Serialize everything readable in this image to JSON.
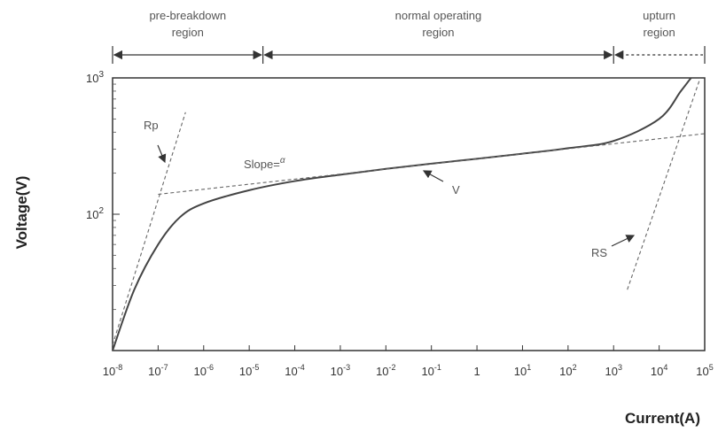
{
  "chart_data": {
    "type": "line",
    "title": "",
    "xlabel": "Current(A)",
    "ylabel": "Voltage(V)",
    "x_scale": "log",
    "y_scale": "log",
    "xlim": [
      1e-08,
      100000.0
    ],
    "ylim": [
      10,
      1000
    ],
    "x_ticks": [
      {
        "value": 1e-08,
        "base": "10",
        "exp": "-8"
      },
      {
        "value": 1e-07,
        "base": "10",
        "exp": "-7"
      },
      {
        "value": 1e-06,
        "base": "10",
        "exp": "-6"
      },
      {
        "value": 1e-05,
        "base": "10",
        "exp": "-5"
      },
      {
        "value": 0.0001,
        "base": "10",
        "exp": "-4"
      },
      {
        "value": 0.001,
        "base": "10",
        "exp": "-3"
      },
      {
        "value": 0.01,
        "base": "10",
        "exp": "-2"
      },
      {
        "value": 0.1,
        "base": "10",
        "exp": "-1"
      },
      {
        "value": 1,
        "base": "1",
        "exp": ""
      },
      {
        "value": 10.0,
        "base": "10",
        "exp": "1"
      },
      {
        "value": 100.0,
        "base": "10",
        "exp": "2"
      },
      {
        "value": 1000.0,
        "base": "10",
        "exp": "3"
      },
      {
        "value": 10000.0,
        "base": "10",
        "exp": "4"
      },
      {
        "value": 100000.0,
        "base": "10",
        "exp": "5"
      }
    ],
    "y_ticks": [
      {
        "value": 100,
        "base": "10",
        "exp": "2"
      },
      {
        "value": 1000,
        "base": "10",
        "exp": "3"
      }
    ],
    "regions": [
      {
        "line1": "pre-breakdown",
        "line2": "region",
        "from": 1e-08,
        "to": 2e-05,
        "style": "solid"
      },
      {
        "line1": "normal operating",
        "line2": "region",
        "from": 2e-05,
        "to": 1000.0,
        "style": "solid"
      },
      {
        "line1": "upturn",
        "line2": "region",
        "from": 1000.0,
        "to": 100000.0,
        "style": "dotted"
      }
    ],
    "series": [
      {
        "label": "V",
        "style": "solid",
        "points": [
          [
            1e-08,
            10
          ],
          [
            3e-08,
            28
          ],
          [
            1e-07,
            60
          ],
          [
            3e-07,
            95
          ],
          [
            1e-06,
            120
          ],
          [
            1e-05,
            150
          ],
          [
            0.0001,
            175
          ],
          [
            0.001,
            195
          ],
          [
            0.01,
            215
          ],
          [
            0.1,
            235
          ],
          [
            1,
            255
          ],
          [
            10,
            278
          ],
          [
            100,
            305
          ],
          [
            1000.0,
            345
          ],
          [
            10000.0,
            500
          ],
          [
            30000.0,
            800
          ],
          [
            50000.0,
            1000
          ]
        ]
      },
      {
        "label": "Rp",
        "style": "dashed",
        "points": [
          [
            1e-08,
            11
          ],
          [
            4e-07,
            560
          ]
        ]
      },
      {
        "label": "Slope=",
        "symbol": "α",
        "style": "dashed",
        "points": [
          [
            1e-07,
            140
          ],
          [
            100000.0,
            390
          ]
        ]
      },
      {
        "label": "RS",
        "style": "dashed",
        "points": [
          [
            2000.0,
            28
          ],
          [
            80000.0,
            1000
          ]
        ]
      }
    ],
    "annotations": [
      {
        "text": "Rp",
        "target": "Rp"
      },
      {
        "text": "Slope=",
        "symbol": "α",
        "target": "Slope="
      },
      {
        "text": "V",
        "target": "V"
      },
      {
        "text": "RS",
        "target": "RS"
      }
    ]
  }
}
